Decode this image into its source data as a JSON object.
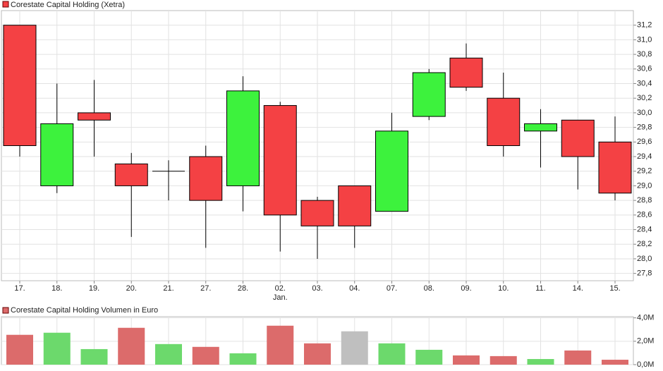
{
  "chart_data": [
    {
      "type": "candlestick",
      "title": "Corestate Capital Holding (Xetra)",
      "categories": [
        "17.",
        "18.",
        "19.",
        "20.",
        "21.",
        "27.",
        "28.",
        "02.",
        "03.",
        "04.",
        "07.",
        "08.",
        "09.",
        "10.",
        "11.",
        "14.",
        "15."
      ],
      "x_sublabels": [
        null,
        null,
        null,
        null,
        null,
        null,
        null,
        "Jan.",
        null,
        null,
        null,
        null,
        null,
        null,
        null,
        null,
        null
      ],
      "open": [
        31.2,
        29.0,
        30.0,
        29.3,
        29.2,
        29.4,
        29.0,
        30.1,
        28.8,
        29.0,
        28.65,
        29.95,
        30.75,
        30.2,
        29.75,
        29.9,
        29.6
      ],
      "high": [
        31.2,
        30.4,
        30.45,
        29.45,
        29.35,
        29.55,
        30.5,
        30.15,
        28.85,
        29.0,
        30.0,
        30.6,
        30.95,
        30.55,
        30.05,
        29.9,
        29.95
      ],
      "low": [
        29.4,
        28.9,
        29.4,
        28.3,
        28.8,
        28.15,
        28.65,
        28.1,
        28.0,
        28.15,
        28.65,
        29.9,
        30.3,
        29.4,
        29.25,
        28.95,
        28.8
      ],
      "close": [
        29.55,
        29.85,
        29.9,
        29.0,
        29.2,
        28.8,
        30.3,
        28.6,
        28.45,
        28.45,
        29.75,
        30.55,
        30.35,
        29.55,
        29.85,
        29.4,
        28.9
      ],
      "up_color": "#3df23d",
      "down_color": "#f44144",
      "ylim": [
        27.7,
        31.4
      ],
      "yticks": [
        {
          "value": 27.8,
          "label": "27,8"
        },
        {
          "value": 28.0,
          "label": "28,0"
        },
        {
          "value": 28.2,
          "label": "28,2"
        },
        {
          "value": 28.4,
          "label": "28,4"
        },
        {
          "value": 28.6,
          "label": "28,6"
        },
        {
          "value": 28.8,
          "label": "28,8"
        },
        {
          "value": 29.0,
          "label": "29,0"
        },
        {
          "value": 29.2,
          "label": "29,2"
        },
        {
          "value": 29.4,
          "label": "29,4"
        },
        {
          "value": 29.6,
          "label": "29,6"
        },
        {
          "value": 29.8,
          "label": "29,8"
        },
        {
          "value": 30.0,
          "label": "30,0"
        },
        {
          "value": 30.2,
          "label": "30,2"
        },
        {
          "value": 30.4,
          "label": "30,4"
        },
        {
          "value": 30.6,
          "label": "30,6"
        },
        {
          "value": 30.8,
          "label": "30,8"
        },
        {
          "value": 31.0,
          "label": "31,0"
        },
        {
          "value": 31.2,
          "label": "31,2"
        }
      ],
      "grid": true
    },
    {
      "type": "bar",
      "title": "Corestate Capital Holding Volumen in Euro",
      "values": [
        2550000,
        2730000,
        1330000,
        3150000,
        1760000,
        1520000,
        970000,
        3330000,
        1820000,
        2850000,
        1820000,
        1270000,
        790000,
        730000,
        480000,
        1210000,
        420000
      ],
      "colors": [
        "#dc6b6b",
        "#6cd96c",
        "#6cd96c",
        "#dc6b6b",
        "#6cd96c",
        "#dc6b6b",
        "#6cd96c",
        "#dc6b6b",
        "#dc6b6b",
        "#bfbfbf",
        "#6cd96c",
        "#6cd96c",
        "#dc6b6b",
        "#dc6b6b",
        "#6cd96c",
        "#dc6b6b",
        "#dc6b6b"
      ],
      "legend_color": "#dc6b6b",
      "ylim": [
        0,
        4100000
      ],
      "yticks": [
        {
          "value": 0,
          "label": "0,0M"
        },
        {
          "value": 2000000,
          "label": "2,0M"
        },
        {
          "value": 4000000,
          "label": "4,0M"
        }
      ],
      "grid": true
    }
  ]
}
